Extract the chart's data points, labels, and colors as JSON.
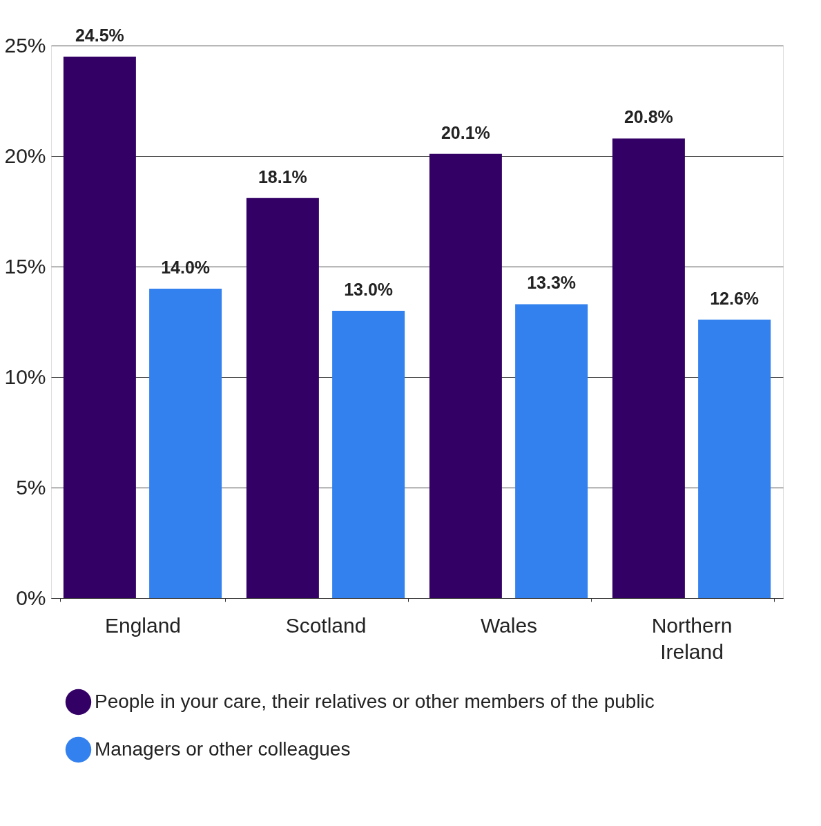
{
  "chart_data": {
    "type": "bar",
    "categories": [
      "England",
      "Scotland",
      "Wales",
      "Northern Ireland"
    ],
    "series": [
      {
        "name": "People in your care, their relatives or other members of the public",
        "color": "#330066",
        "values": [
          24.5,
          18.1,
          20.1,
          20.8
        ],
        "value_labels": [
          "24.5%",
          "18.1%",
          "20.1%",
          "20.8%"
        ]
      },
      {
        "name": "Managers or other colleagues",
        "color": "#3381ee",
        "values": [
          14.0,
          13.0,
          13.3,
          12.6
        ],
        "value_labels": [
          "14.0%",
          "13.0%",
          "13.3%",
          "12.6%"
        ]
      }
    ],
    "ylim": [
      0,
      25
    ],
    "yticks": [
      {
        "value": 0,
        "label": "0%"
      },
      {
        "value": 5,
        "label": "5%"
      },
      {
        "value": 10,
        "label": "10%"
      },
      {
        "value": 15,
        "label": "15%"
      },
      {
        "value": 20,
        "label": "20%"
      },
      {
        "value": 25,
        "label": "25%"
      }
    ],
    "grid": "y",
    "legend": "bottom"
  }
}
